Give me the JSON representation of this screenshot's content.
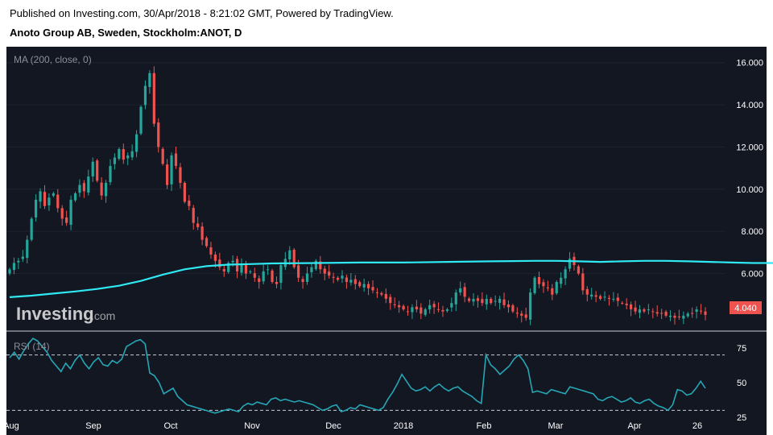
{
  "header": {
    "published": "Published on Investing.com, 30/Apr/2018 - 8:21:02 GMT, Powered by TradingView.",
    "title": "Anoto Group AB, Sweden, Stockholm:ANOT, D"
  },
  "watermark": {
    "brand": "Investing",
    "suffix": ".com"
  },
  "colors": {
    "background": "#131722",
    "up": "#26a69a",
    "down": "#ef5350",
    "ma": "#2ee8f2",
    "rsi": "#26a6b4",
    "last_price_badge": "#ef5350"
  },
  "chart_data": [
    {
      "type": "candlestick",
      "indicator_label": "MA (200, close, 0)",
      "ylim": [
        3.5,
        16.6
      ],
      "y_ticks": [
        "16.000",
        "14.000",
        "12.000",
        "10.000",
        "8.000",
        "6.000"
      ],
      "last_price": "4.040",
      "x_ticks": [
        "Aug",
        "Sep",
        "Oct",
        "Nov",
        "Dec",
        "2018",
        "Feb",
        "Mar",
        "Apr",
        "26"
      ],
      "closes": [
        6.2,
        6.5,
        6.6,
        6.8,
        7.6,
        8.6,
        9.5,
        9.9,
        9.2,
        9.6,
        9.8,
        9.1,
        8.6,
        8.4,
        9.5,
        9.8,
        10.2,
        9.9,
        10.6,
        11.3,
        10.4,
        9.7,
        10.3,
        11.1,
        11.5,
        11.9,
        11.4,
        11.6,
        11.8,
        12.6,
        13.9,
        14.9,
        15.5,
        13.1,
        12.0,
        11.2,
        10.2,
        11.6,
        11.1,
        10.3,
        9.4,
        9.2,
        8.4,
        8.2,
        7.6,
        7.3,
        6.9,
        6.6,
        6.3,
        6.1,
        6.5,
        6.6,
        6.1,
        6.4,
        6.0,
        6.1,
        5.8,
        5.6,
        6.1,
        6.2,
        5.6,
        5.5,
        6.4,
        6.7,
        7.1,
        6.3,
        5.8,
        5.6,
        6.0,
        6.3,
        6.6,
        6.2,
        6.0,
        5.9,
        5.8,
        5.7,
        5.9,
        5.6,
        5.7,
        5.5,
        5.4,
        5.5,
        5.3,
        5.2,
        5.1,
        5.0,
        4.8,
        4.6,
        4.5,
        4.4,
        4.3,
        4.2,
        4.4,
        4.3,
        4.1,
        4.3,
        4.5,
        4.4,
        4.3,
        4.2,
        4.3,
        4.6,
        5.1,
        5.3,
        4.9,
        4.7,
        4.8,
        4.7,
        4.6,
        4.8,
        4.6,
        4.7,
        4.8,
        4.5,
        4.4,
        4.2,
        4.1,
        4.0,
        3.9,
        5.1,
        5.8,
        5.5,
        5.4,
        5.3,
        5.0,
        5.6,
        5.8,
        6.2,
        6.7,
        6.4,
        6.0,
        5.2,
        5.0,
        5.0,
        4.9,
        4.8,
        4.9,
        4.8,
        4.8,
        4.7,
        4.6,
        4.5,
        4.3,
        4.2,
        4.3,
        4.2,
        4.3,
        4.2,
        4.1,
        4.1,
        4.0,
        4.0,
        3.9,
        3.95,
        4.0,
        4.1,
        4.1,
        4.3,
        4.2,
        4.04
      ],
      "ma_200": [
        4.88,
        4.95,
        5.05,
        5.15,
        5.27,
        5.42,
        5.65,
        5.95,
        6.2,
        6.35,
        6.42,
        6.45,
        6.48,
        6.5,
        6.52,
        6.52,
        6.55,
        6.58,
        6.6,
        6.6,
        6.58,
        6.55,
        6.58,
        6.6,
        6.6,
        6.58,
        6.55,
        6.52,
        6.5,
        6.5,
        6.48,
        6.45
      ],
      "ma_x": [
        0,
        5,
        10,
        15,
        20,
        25,
        30,
        35,
        40,
        45,
        50,
        55,
        60,
        70,
        80,
        90,
        100,
        110,
        120,
        125,
        130,
        135,
        140,
        145,
        150,
        155,
        160,
        165,
        170,
        175,
        180,
        183
      ]
    },
    {
      "type": "line",
      "indicator_label": "RSI (14)",
      "ylim": [
        25,
        82
      ],
      "y_ticks": [
        "75",
        "50",
        "25"
      ],
      "levels": [
        70,
        30
      ],
      "values": [
        68,
        72,
        67,
        73,
        78,
        82,
        80,
        76,
        72,
        66,
        62,
        58,
        64,
        60,
        66,
        70,
        64,
        60,
        65,
        68,
        63,
        62,
        66,
        64,
        67,
        76,
        78,
        80,
        81,
        78,
        57,
        55,
        50,
        42,
        44,
        46,
        40,
        37,
        34,
        33,
        32,
        31,
        30,
        29,
        28,
        29,
        30,
        31,
        30,
        29,
        33,
        35,
        34,
        36,
        35,
        34,
        38,
        39,
        37,
        38,
        37,
        36,
        37,
        36,
        35,
        34,
        32,
        30,
        31,
        33,
        34,
        29,
        30,
        32,
        31,
        34,
        33,
        32,
        31,
        30,
        32,
        38,
        43,
        49,
        56,
        51,
        46,
        44,
        45,
        47,
        44,
        47,
        49,
        46,
        44,
        46,
        47,
        44,
        42,
        40,
        37,
        35,
        70,
        63,
        60,
        56,
        59,
        62,
        67,
        70,
        66,
        60,
        43,
        44,
        43,
        42,
        45,
        44,
        43,
        42,
        47,
        46,
        45,
        44,
        43,
        42,
        38,
        37,
        39,
        40,
        38,
        36,
        37,
        39,
        36,
        35,
        37,
        38,
        35,
        33,
        32,
        30,
        34,
        45,
        44,
        41,
        42,
        46,
        51,
        46
      ]
    }
  ]
}
